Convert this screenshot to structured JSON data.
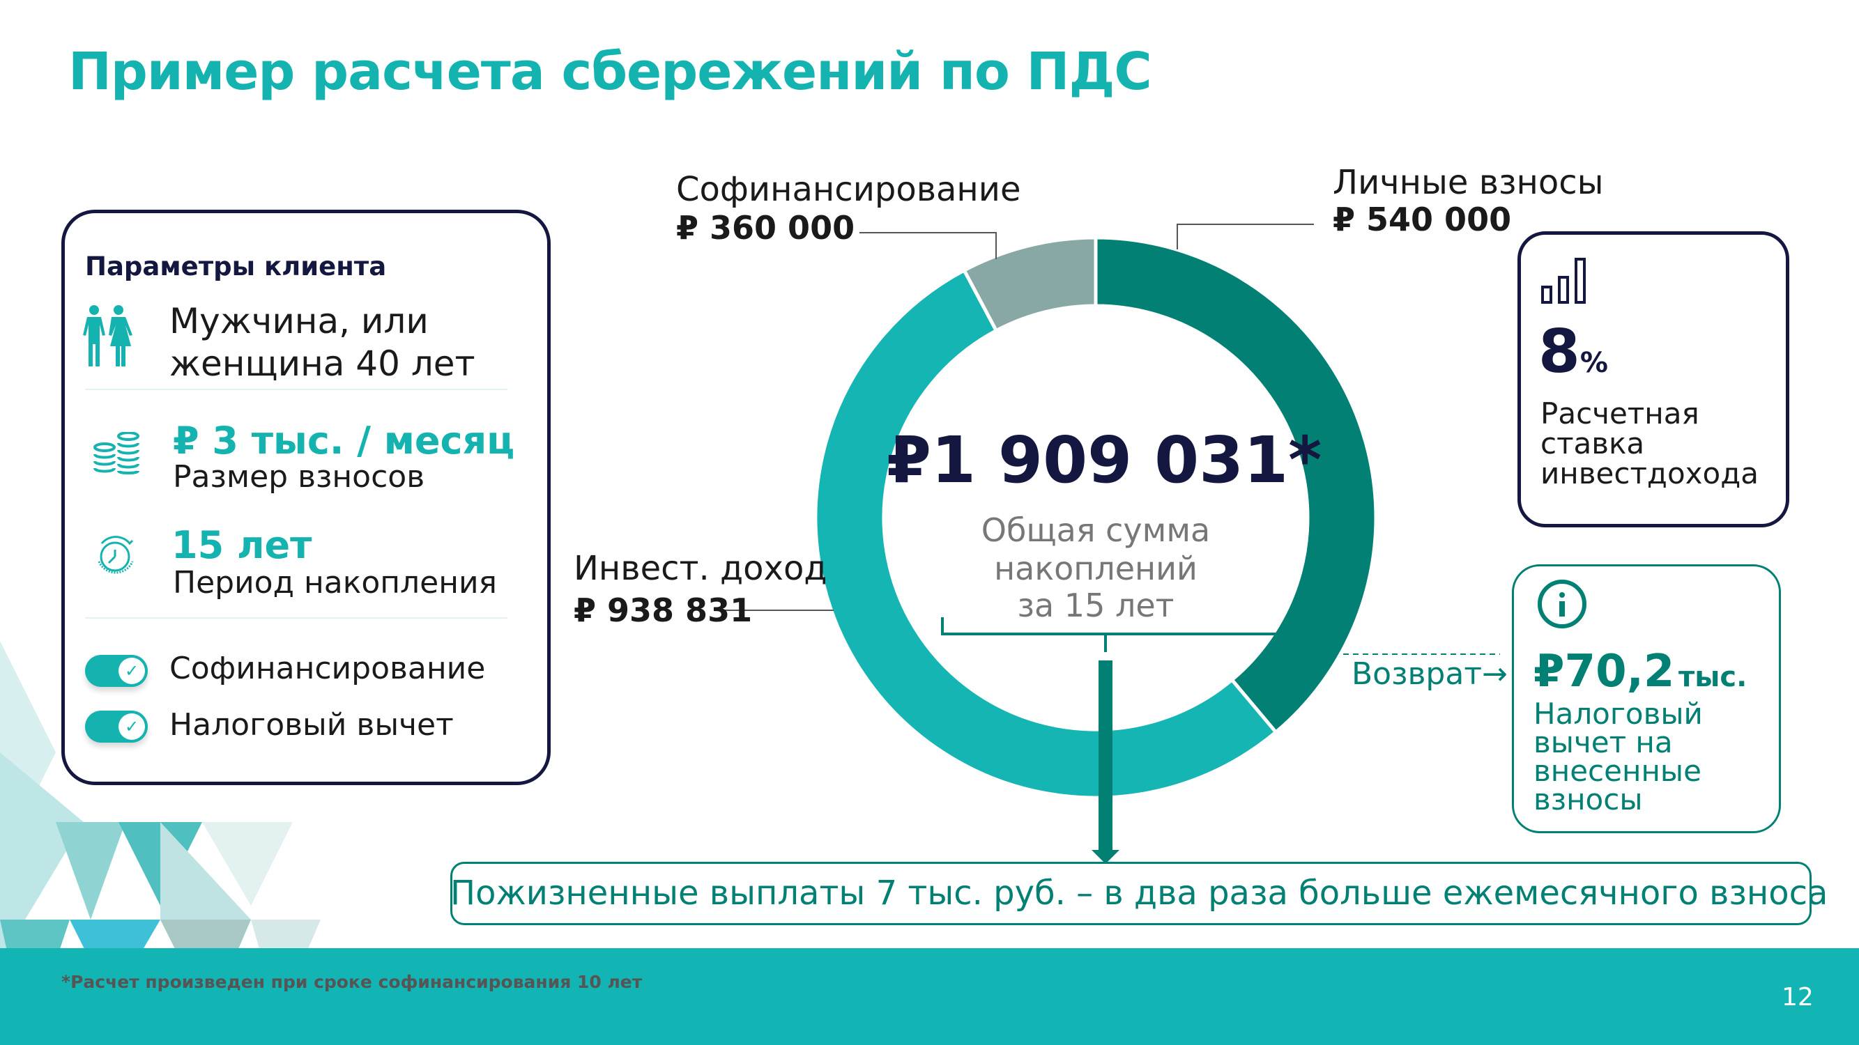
{
  "title": "Пример расчета сбережений по ПДС",
  "client": {
    "heading": "Параметры клиента",
    "person_line1": "Мужчина, или",
    "person_line2": "женщина 40 лет",
    "contribution_value": "₽ 3 тыс. / месяц",
    "contribution_label": "Размер взносов",
    "period_value": "15 лет",
    "period_label": "Период накопления",
    "toggles": [
      {
        "label": "Софинансирование",
        "on": true
      },
      {
        "label": "Налоговый вычет",
        "on": true
      }
    ]
  },
  "chart_data": {
    "type": "pie",
    "subtype": "donut",
    "segments": [
      {
        "name": "Личные взносы",
        "value_label": "₽ 540 000",
        "value": 540000,
        "color": "#038074"
      },
      {
        "name": "Инвест. доход",
        "value_label": "₽ 938 831",
        "value": 938831,
        "color": "#14b5b2"
      },
      {
        "name": "Софинансирование",
        "value_label": "₽ 360 000",
        "value": 360000,
        "color": "#88a8a5"
      }
    ],
    "center_value": "₽1 909 031*",
    "center_label_lines": [
      "Общая сумма",
      "накоплений",
      "за 15 лет"
    ]
  },
  "rate": {
    "value": "8",
    "unit": "%",
    "label_lines": [
      "Расчетная",
      "ставка",
      "инвестдохода"
    ]
  },
  "refund": {
    "link": "Возврат",
    "arrow": "→",
    "value": "₽70,2",
    "unit": "тыс.",
    "label_lines": [
      "Налоговый",
      "вычет на",
      "внесенные",
      "взносы"
    ]
  },
  "banner": "Пожизненные выплаты 7 тыс. руб. – в два раза больше ежемесячного взноса",
  "footnote": "*Расчет произведен при сроке софинансирования 10 лет",
  "page_number": "12"
}
